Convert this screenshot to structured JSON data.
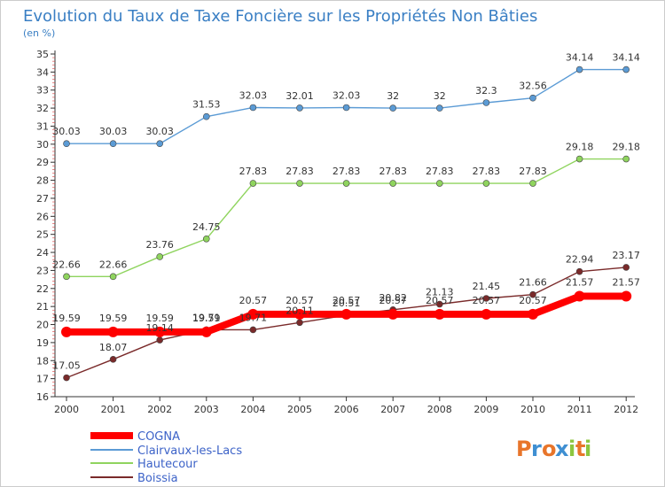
{
  "chart_data": {
    "type": "line",
    "title": "Evolution du Taux de Taxe Foncière sur les Propriétés Non Bâties",
    "ylabel": "(en %)",
    "x": [
      "2000",
      "2001",
      "2002",
      "2003",
      "2004",
      "2005",
      "2006",
      "2007",
      "2008",
      "2009",
      "2010",
      "2011",
      "2012"
    ],
    "ylim": [
      16,
      35
    ],
    "yticks": [
      16,
      17,
      18,
      19,
      20,
      21,
      22,
      23,
      24,
      25,
      26,
      27,
      28,
      29,
      30,
      31,
      32,
      33,
      34,
      35
    ],
    "grid": false,
    "legend_position": "bottom-left",
    "series": [
      {
        "name": "COGNA",
        "color": "#ff0000",
        "values": [
          19.59,
          19.59,
          19.59,
          19.59,
          20.57,
          20.57,
          20.57,
          20.57,
          20.57,
          20.57,
          20.57,
          21.57,
          21.57
        ],
        "labels": [
          "19.59",
          "19.59",
          "19.59",
          "19.59",
          "20.57",
          "20.57",
          "20.57",
          "20.57",
          "20.57",
          "20.57",
          "20.57",
          "21.57",
          "21.57"
        ]
      },
      {
        "name": "Clairvaux-les-Lacs",
        "color": "#5b9bd5",
        "values": [
          30.03,
          30.03,
          30.03,
          31.53,
          32.03,
          32.01,
          32.03,
          32,
          32,
          32.3,
          32.56,
          34.14,
          34.14
        ],
        "labels": [
          "30.03",
          "30.03",
          "30.03",
          "31.53",
          "32.03",
          "32.01",
          "32.03",
          "32",
          "32",
          "32.3",
          "32.56",
          "34.14",
          "34.14"
        ]
      },
      {
        "name": "Hautecour",
        "color": "#8fd45e",
        "values": [
          22.66,
          22.66,
          23.76,
          24.75,
          27.83,
          27.83,
          27.83,
          27.83,
          27.83,
          27.83,
          27.83,
          29.18,
          29.18
        ],
        "labels": [
          "22.66",
          "22.66",
          "23.76",
          "24.75",
          "27.83",
          "27.83",
          "27.83",
          "27.83",
          "27.83",
          "27.83",
          "27.83",
          "29.18",
          "29.18"
        ]
      },
      {
        "name": "Boissia",
        "color": "#7a2a2a",
        "values": [
          17.05,
          18.07,
          19.14,
          19.71,
          19.71,
          20.11,
          20.51,
          20.82,
          21.13,
          21.45,
          21.66,
          22.94,
          23.17
        ],
        "labels": [
          "17.05",
          "18.07",
          "19.14",
          "19.71",
          "19.71",
          "20.11",
          "20.51",
          "20.82",
          "21.13",
          "21.45",
          "21.66",
          "22.94",
          "23.17"
        ]
      }
    ]
  },
  "brand": {
    "letters": [
      "P",
      "r",
      "o",
      "x",
      "i",
      "t",
      "i"
    ],
    "colors": [
      "#e8752a",
      "#3f8fd2",
      "#e8752a",
      "#3f8fd2",
      "#8cc63f",
      "#e8752a",
      "#8cc63f"
    ]
  }
}
